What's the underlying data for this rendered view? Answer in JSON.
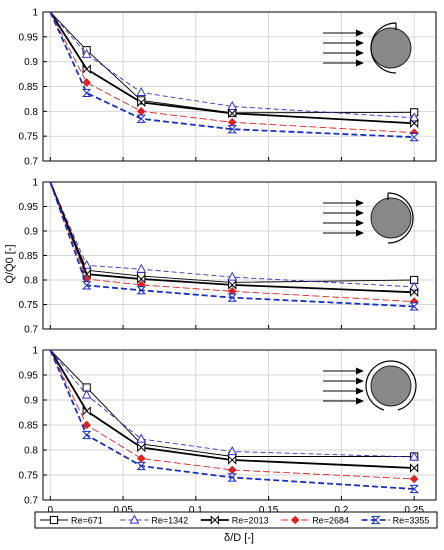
{
  "chart_data": [
    {
      "type": "line",
      "schematic": "half-shield-left",
      "x": [
        0,
        0.025,
        0.0625,
        0.125,
        0.25
      ],
      "ylim": [
        0.7,
        1.0
      ],
      "xlim": [
        -0.005,
        0.265
      ],
      "series": [
        {
          "name": "Re=671",
          "values": [
            1.0,
            0.923,
            0.822,
            0.797,
            0.798
          ]
        },
        {
          "name": "Re=1342",
          "values": [
            1.0,
            0.915,
            0.838,
            0.81,
            0.787
          ]
        },
        {
          "name": "Re=2013",
          "values": [
            1.0,
            0.885,
            0.818,
            0.796,
            0.776
          ]
        },
        {
          "name": "Re=2684",
          "values": [
            1.0,
            0.858,
            0.8,
            0.778,
            0.757
          ]
        },
        {
          "name": "Re=3355",
          "values": [
            1.0,
            0.837,
            0.785,
            0.764,
            0.748
          ]
        }
      ]
    },
    {
      "type": "line",
      "schematic": "half-shield-right",
      "x": [
        0,
        0.025,
        0.0625,
        0.125,
        0.25
      ],
      "ylim": [
        0.7,
        1.0
      ],
      "xlim": [
        -0.005,
        0.265
      ],
      "series": [
        {
          "name": "Re=671",
          "values": [
            1.0,
            0.82,
            0.808,
            0.795,
            0.8
          ]
        },
        {
          "name": "Re=1342",
          "values": [
            1.0,
            0.83,
            0.822,
            0.806,
            0.786
          ]
        },
        {
          "name": "Re=2013",
          "values": [
            1.0,
            0.812,
            0.802,
            0.79,
            0.775
          ]
        },
        {
          "name": "Re=2684",
          "values": [
            1.0,
            0.802,
            0.79,
            0.777,
            0.756
          ]
        },
        {
          "name": "Re=3355",
          "values": [
            1.0,
            0.789,
            0.779,
            0.764,
            0.746
          ]
        }
      ]
    },
    {
      "type": "line",
      "schematic": "full-shield",
      "x": [
        0,
        0.025,
        0.0625,
        0.125,
        0.25
      ],
      "ylim": [
        0.7,
        1.0
      ],
      "xlim": [
        -0.005,
        0.265
      ],
      "series": [
        {
          "name": "Re=671",
          "values": [
            1.0,
            0.925,
            0.812,
            0.787,
            0.787
          ]
        },
        {
          "name": "Re=1342",
          "values": [
            1.0,
            0.91,
            0.822,
            0.797,
            0.786
          ]
        },
        {
          "name": "Re=2013",
          "values": [
            1.0,
            0.878,
            0.805,
            0.78,
            0.764
          ]
        },
        {
          "name": "Re=2684",
          "values": [
            1.0,
            0.85,
            0.783,
            0.76,
            0.742
          ]
        },
        {
          "name": "Re=3355",
          "values": [
            1.0,
            0.83,
            0.768,
            0.745,
            0.722
          ]
        }
      ]
    }
  ],
  "axes": {
    "yticks": [
      "0.7",
      "0.75",
      "0.8",
      "0.85",
      "0.9",
      "0.95",
      "1"
    ],
    "ytick_values": [
      0.7,
      0.75,
      0.8,
      0.85,
      0.9,
      0.95,
      1.0
    ],
    "xticks": [
      "0",
      "0.05",
      "0.1",
      "0.15",
      "0.2",
      "0.25"
    ],
    "xtick_values": [
      0,
      0.05,
      0.1,
      0.15,
      0.2,
      0.25
    ],
    "ylabel": "Q̇/Q̇0 [-]",
    "xlabel": "δ/D [-]"
  },
  "legend_position": "bottom",
  "styles": [
    {
      "name": "Re=671",
      "color": "#000000",
      "width": 0.9,
      "dash": "",
      "marker": "square"
    },
    {
      "name": "Re=1342",
      "color": "#3333cc",
      "width": 0.9,
      "dash": "5,3",
      "marker": "triangle"
    },
    {
      "name": "Re=2013",
      "color": "#000000",
      "width": 1.8,
      "dash": "",
      "marker": "bowtie"
    },
    {
      "name": "Re=2684",
      "color": "#dd2222",
      "width": 0.9,
      "dash": "7,3",
      "marker": "diamond"
    },
    {
      "name": "Re=3355",
      "color": "#1a2fbf",
      "width": 1.8,
      "dash": "6,3",
      "marker": "hourglass"
    }
  ]
}
